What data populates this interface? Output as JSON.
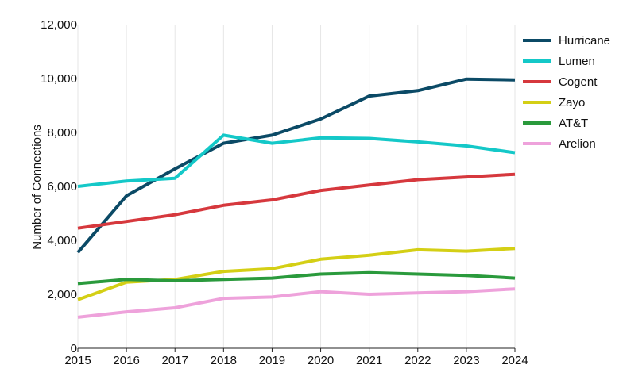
{
  "chart_data": {
    "type": "line",
    "title": "",
    "xlabel": "",
    "ylabel": "Number of Connections",
    "x": [
      2015,
      2016,
      2017,
      2018,
      2019,
      2020,
      2021,
      2022,
      2023,
      2024
    ],
    "xlim": [
      2015,
      2024
    ],
    "ylim": [
      0,
      12000
    ],
    "yticks": [
      0,
      2000,
      4000,
      6000,
      8000,
      10000,
      12000
    ],
    "ytick_labels": [
      "0",
      "2,000",
      "4,000",
      "6,000",
      "8,000",
      "10,000",
      "12,000"
    ],
    "xtick_labels": [
      "2015",
      "2016",
      "2017",
      "2018",
      "2019",
      "2020",
      "2021",
      "2022",
      "2023",
      "2024"
    ],
    "grid": "vertical",
    "legend_position": "top-right",
    "series": [
      {
        "name": "Hurricane",
        "color": "#0b4a66",
        "values": [
          3550,
          5650,
          6650,
          7600,
          7900,
          8500,
          9350,
          9550,
          9980,
          9950
        ]
      },
      {
        "name": "Lumen",
        "color": "#14c8c8",
        "values": [
          6000,
          6200,
          6300,
          7900,
          7600,
          7800,
          7780,
          7650,
          7500,
          7250
        ]
      },
      {
        "name": "Cogent",
        "color": "#d6383d",
        "values": [
          4450,
          4700,
          4950,
          5300,
          5500,
          5850,
          6050,
          6250,
          6350,
          6450
        ]
      },
      {
        "name": "Zayo",
        "color": "#d4cf15",
        "values": [
          1800,
          2450,
          2550,
          2850,
          2950,
          3300,
          3450,
          3650,
          3600,
          3700
        ]
      },
      {
        "name": "AT&T",
        "color": "#2a9a3c",
        "values": [
          2400,
          2550,
          2500,
          2550,
          2600,
          2750,
          2800,
          2750,
          2700,
          2600
        ]
      },
      {
        "name": "Arelion",
        "color": "#eea2db",
        "values": [
          1150,
          1350,
          1500,
          1850,
          1900,
          2100,
          2000,
          2050,
          2100,
          2200
        ]
      }
    ]
  }
}
